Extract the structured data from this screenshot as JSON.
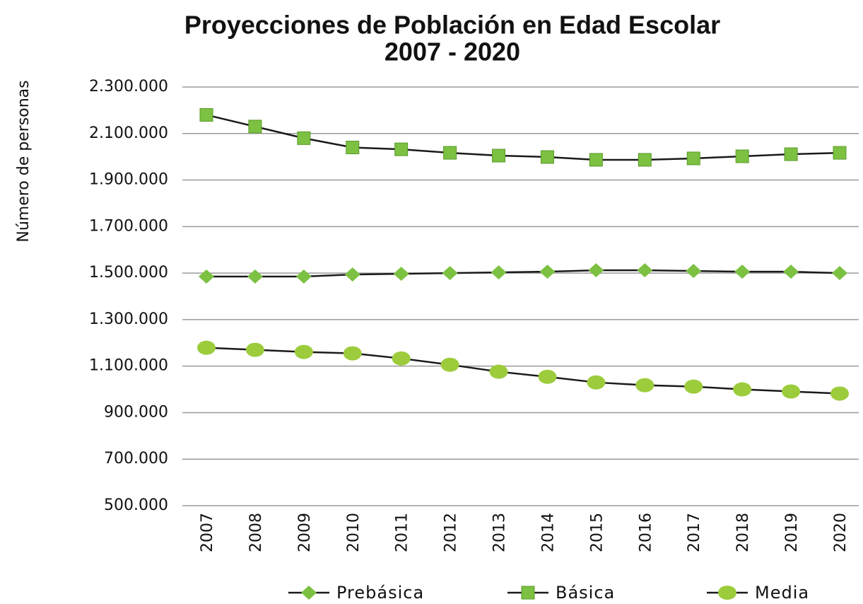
{
  "chart_data": {
    "type": "line",
    "title": "Proyecciones de Población en Edad Escolar",
    "subtitle": "2007 - 2020",
    "y_label": "Número de personas",
    "categories": [
      "2007",
      "2008",
      "2009",
      "2010",
      "2011",
      "2012",
      "2013",
      "2014",
      "2015",
      "2016",
      "2017",
      "2018",
      "2019",
      "2020"
    ],
    "series": [
      {
        "name": "Prebásica",
        "color": "#7cc142",
        "marker": "diamond",
        "values": [
          1485000,
          1485000,
          1485000,
          1494000,
          1497000,
          1500000,
          1503000,
          1506000,
          1512000,
          1512000,
          1509000,
          1506000,
          1506000,
          1500000
        ]
      },
      {
        "name": "Básica",
        "color": "#7cc142",
        "marker": "square",
        "values": [
          2180000,
          2130000,
          2080000,
          2040000,
          2032000,
          2017000,
          2005000,
          1999000,
          1987000,
          1987000,
          1993000,
          2002000,
          2011000,
          2017000
        ]
      },
      {
        "name": "Media",
        "color": "#9ccc3c",
        "marker": "circle",
        "values": [
          1179000,
          1170000,
          1161000,
          1155000,
          1133000,
          1106000,
          1076000,
          1054000,
          1030000,
          1018000,
          1012000,
          1000000,
          991000,
          982000
        ]
      }
    ],
    "line_color": "#1a1a1a",
    "ylim": [
      500000,
      2300000
    ],
    "yticks": [
      {
        "value": 500000,
        "label": "500.000"
      },
      {
        "value": 700000,
        "label": "700.000"
      },
      {
        "value": 900000,
        "label": "900.000"
      },
      {
        "value": 1100000,
        "label": "1.100.000"
      },
      {
        "value": 1300000,
        "label": "1.300.000"
      },
      {
        "value": 1500000,
        "label": "1.500.000"
      },
      {
        "value": 1700000,
        "label": "1.700.000"
      },
      {
        "value": 1900000,
        "label": "1.900.000"
      },
      {
        "value": 2100000,
        "label": "2.100.000"
      },
      {
        "value": 2300000,
        "label": "2.300.000"
      }
    ],
    "grid": true,
    "legend": "bottom"
  }
}
